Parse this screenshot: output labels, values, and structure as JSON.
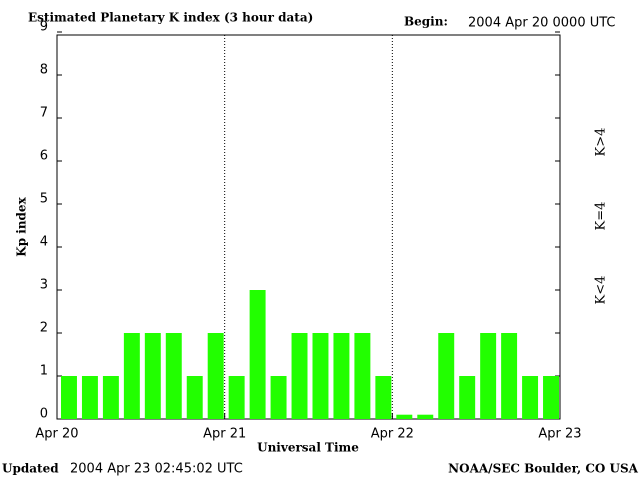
{
  "chart_data": {
    "type": "bar",
    "title": "Estimated Planetary K index (3 hour data)",
    "begin_label": "Begin:",
    "begin_value": "2004 Apr 20 0000 UTC",
    "ylabel": "Kp index",
    "xlabel": "Universal Time",
    "updated_label": "Updated",
    "updated_value": "2004 Apr 23 02:45:02 UTC",
    "source": "NOAA/SEC Boulder, CO USA",
    "categories": [
      null,
      null,
      null,
      null,
      null,
      null,
      null,
      null,
      null,
      null,
      null,
      null,
      null,
      null,
      null,
      null,
      null,
      null,
      null,
      null,
      null,
      null,
      null,
      null
    ],
    "values": [
      1,
      1,
      1,
      2,
      2,
      2,
      1,
      2,
      1,
      3,
      1,
      2,
      2,
      2,
      2,
      1,
      0.1,
      0.1,
      2,
      1,
      2,
      2,
      1,
      1
    ],
    "color": "#22ff00",
    "xticks": [
      "Apr 20",
      "Apr 21",
      "Apr 22",
      "Apr 23"
    ],
    "ylim": [
      0,
      9
    ],
    "yticks": [
      0,
      1,
      2,
      3,
      4,
      5,
      6,
      7,
      8,
      9
    ],
    "legend": [
      {
        "label": "K<4",
        "color": "#22ff00"
      },
      {
        "label": "K=4",
        "color": "#ffdd00"
      },
      {
        "label": "K>4",
        "color": "#ff2200"
      }
    ]
  }
}
